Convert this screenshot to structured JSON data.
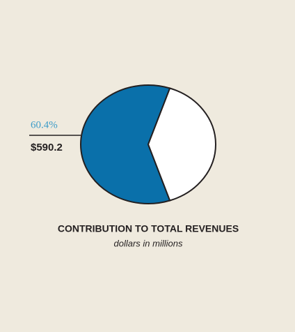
{
  "chart_data": {
    "type": "pie",
    "title": "CONTRIBUTION TO TOTAL REVENUES",
    "subtitle": "dollars in millions",
    "values": [
      60.4,
      39.6
    ],
    "value_labels": [
      "60.4%",
      null
    ],
    "amount_labels": [
      "$590.2",
      null
    ],
    "colors": [
      "#0a70aa",
      "#ffffff"
    ]
  }
}
